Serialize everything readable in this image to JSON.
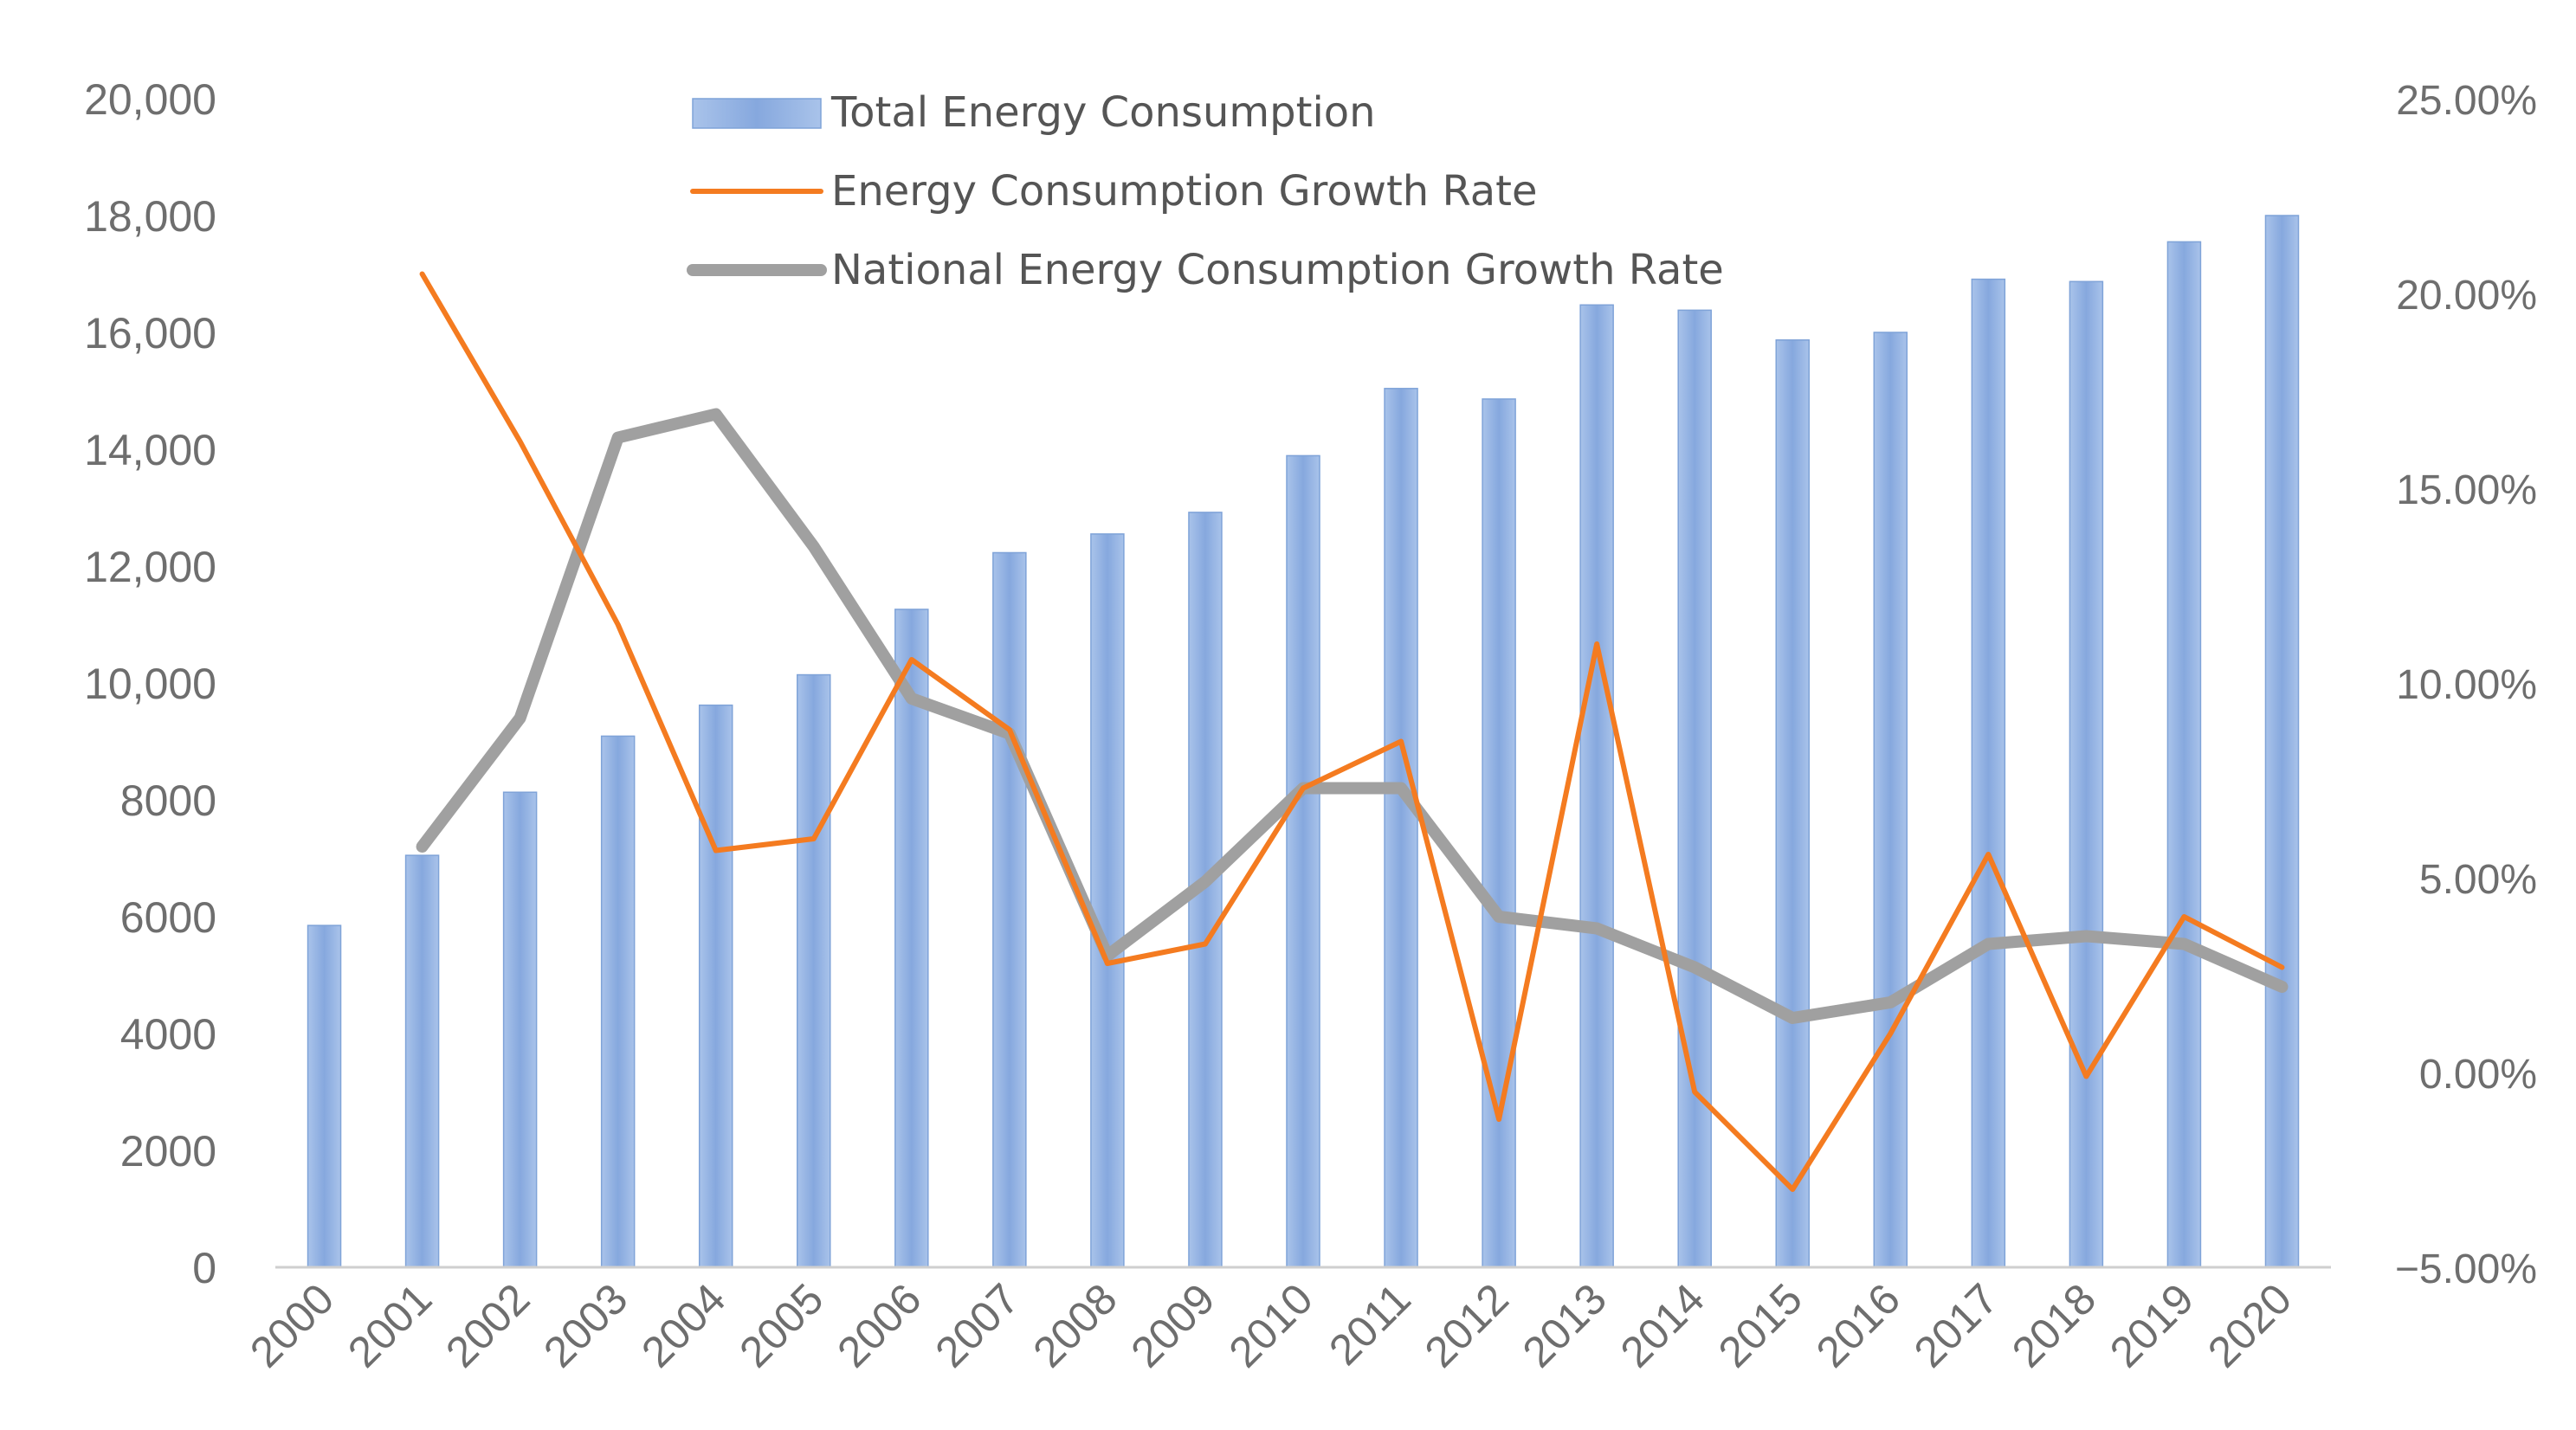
{
  "chart_data": {
    "type": "bar",
    "categories": [
      "2000",
      "2001",
      "2002",
      "2003",
      "2004",
      "2005",
      "2006",
      "2007",
      "2008",
      "2009",
      "2010",
      "2011",
      "2012",
      "2013",
      "2014",
      "2015",
      "2016",
      "2017",
      "2018",
      "2019",
      "2020"
    ],
    "series": [
      {
        "name": "Total Energy Consumption",
        "type": "bar",
        "axis": "left",
        "color": "#8fb0e0",
        "values": [
          5850,
          7050,
          8130,
          9090,
          9620,
          10140,
          11260,
          12230,
          12550,
          12920,
          13890,
          15040,
          14860,
          16470,
          16380,
          15870,
          16000,
          16910,
          16870,
          17550,
          18000
        ]
      },
      {
        "name": "Energy Consumption Growth Rate",
        "type": "line",
        "axis": "right",
        "color": "#f47b20",
        "values": [
          null,
          20.5,
          16.2,
          11.5,
          5.7,
          6.0,
          10.6,
          8.8,
          2.8,
          3.3,
          7.3,
          8.5,
          -1.2,
          11.0,
          -0.5,
          -3.0,
          1.0,
          5.6,
          -0.1,
          4.0,
          2.7
        ]
      },
      {
        "name": "National Energy Consumption Growth Rate",
        "type": "line",
        "axis": "right",
        "color": "#a0a0a0",
        "values": [
          null,
          5.8,
          9.1,
          16.3,
          16.9,
          13.5,
          9.6,
          8.7,
          3.0,
          4.9,
          7.3,
          7.3,
          4.0,
          3.7,
          2.7,
          1.4,
          1.8,
          3.3,
          3.5,
          3.3,
          2.2
        ]
      }
    ],
    "left_axis": {
      "ylim": [
        0,
        20000
      ],
      "ticks": [
        0,
        2000,
        4000,
        6000,
        8000,
        10000,
        12000,
        14000,
        16000,
        18000,
        20000
      ],
      "tick_labels": [
        "0",
        "2000",
        "4000",
        "6000",
        "8000",
        "10,000",
        "12,000",
        "14,000",
        "16,000",
        "18,000",
        "20,000"
      ]
    },
    "right_axis": {
      "ylim": [
        -5,
        25
      ],
      "ticks": [
        -5,
        0,
        5,
        10,
        15,
        20,
        25
      ],
      "tick_labels": [
        "−5.00%",
        "0.00%",
        "5.00%",
        "10.00%",
        "15.00%",
        "20.00%",
        "25.00%"
      ]
    },
    "title": "",
    "xlabel": "",
    "ylabel": "",
    "grid": false,
    "legend_position": "top-center"
  }
}
